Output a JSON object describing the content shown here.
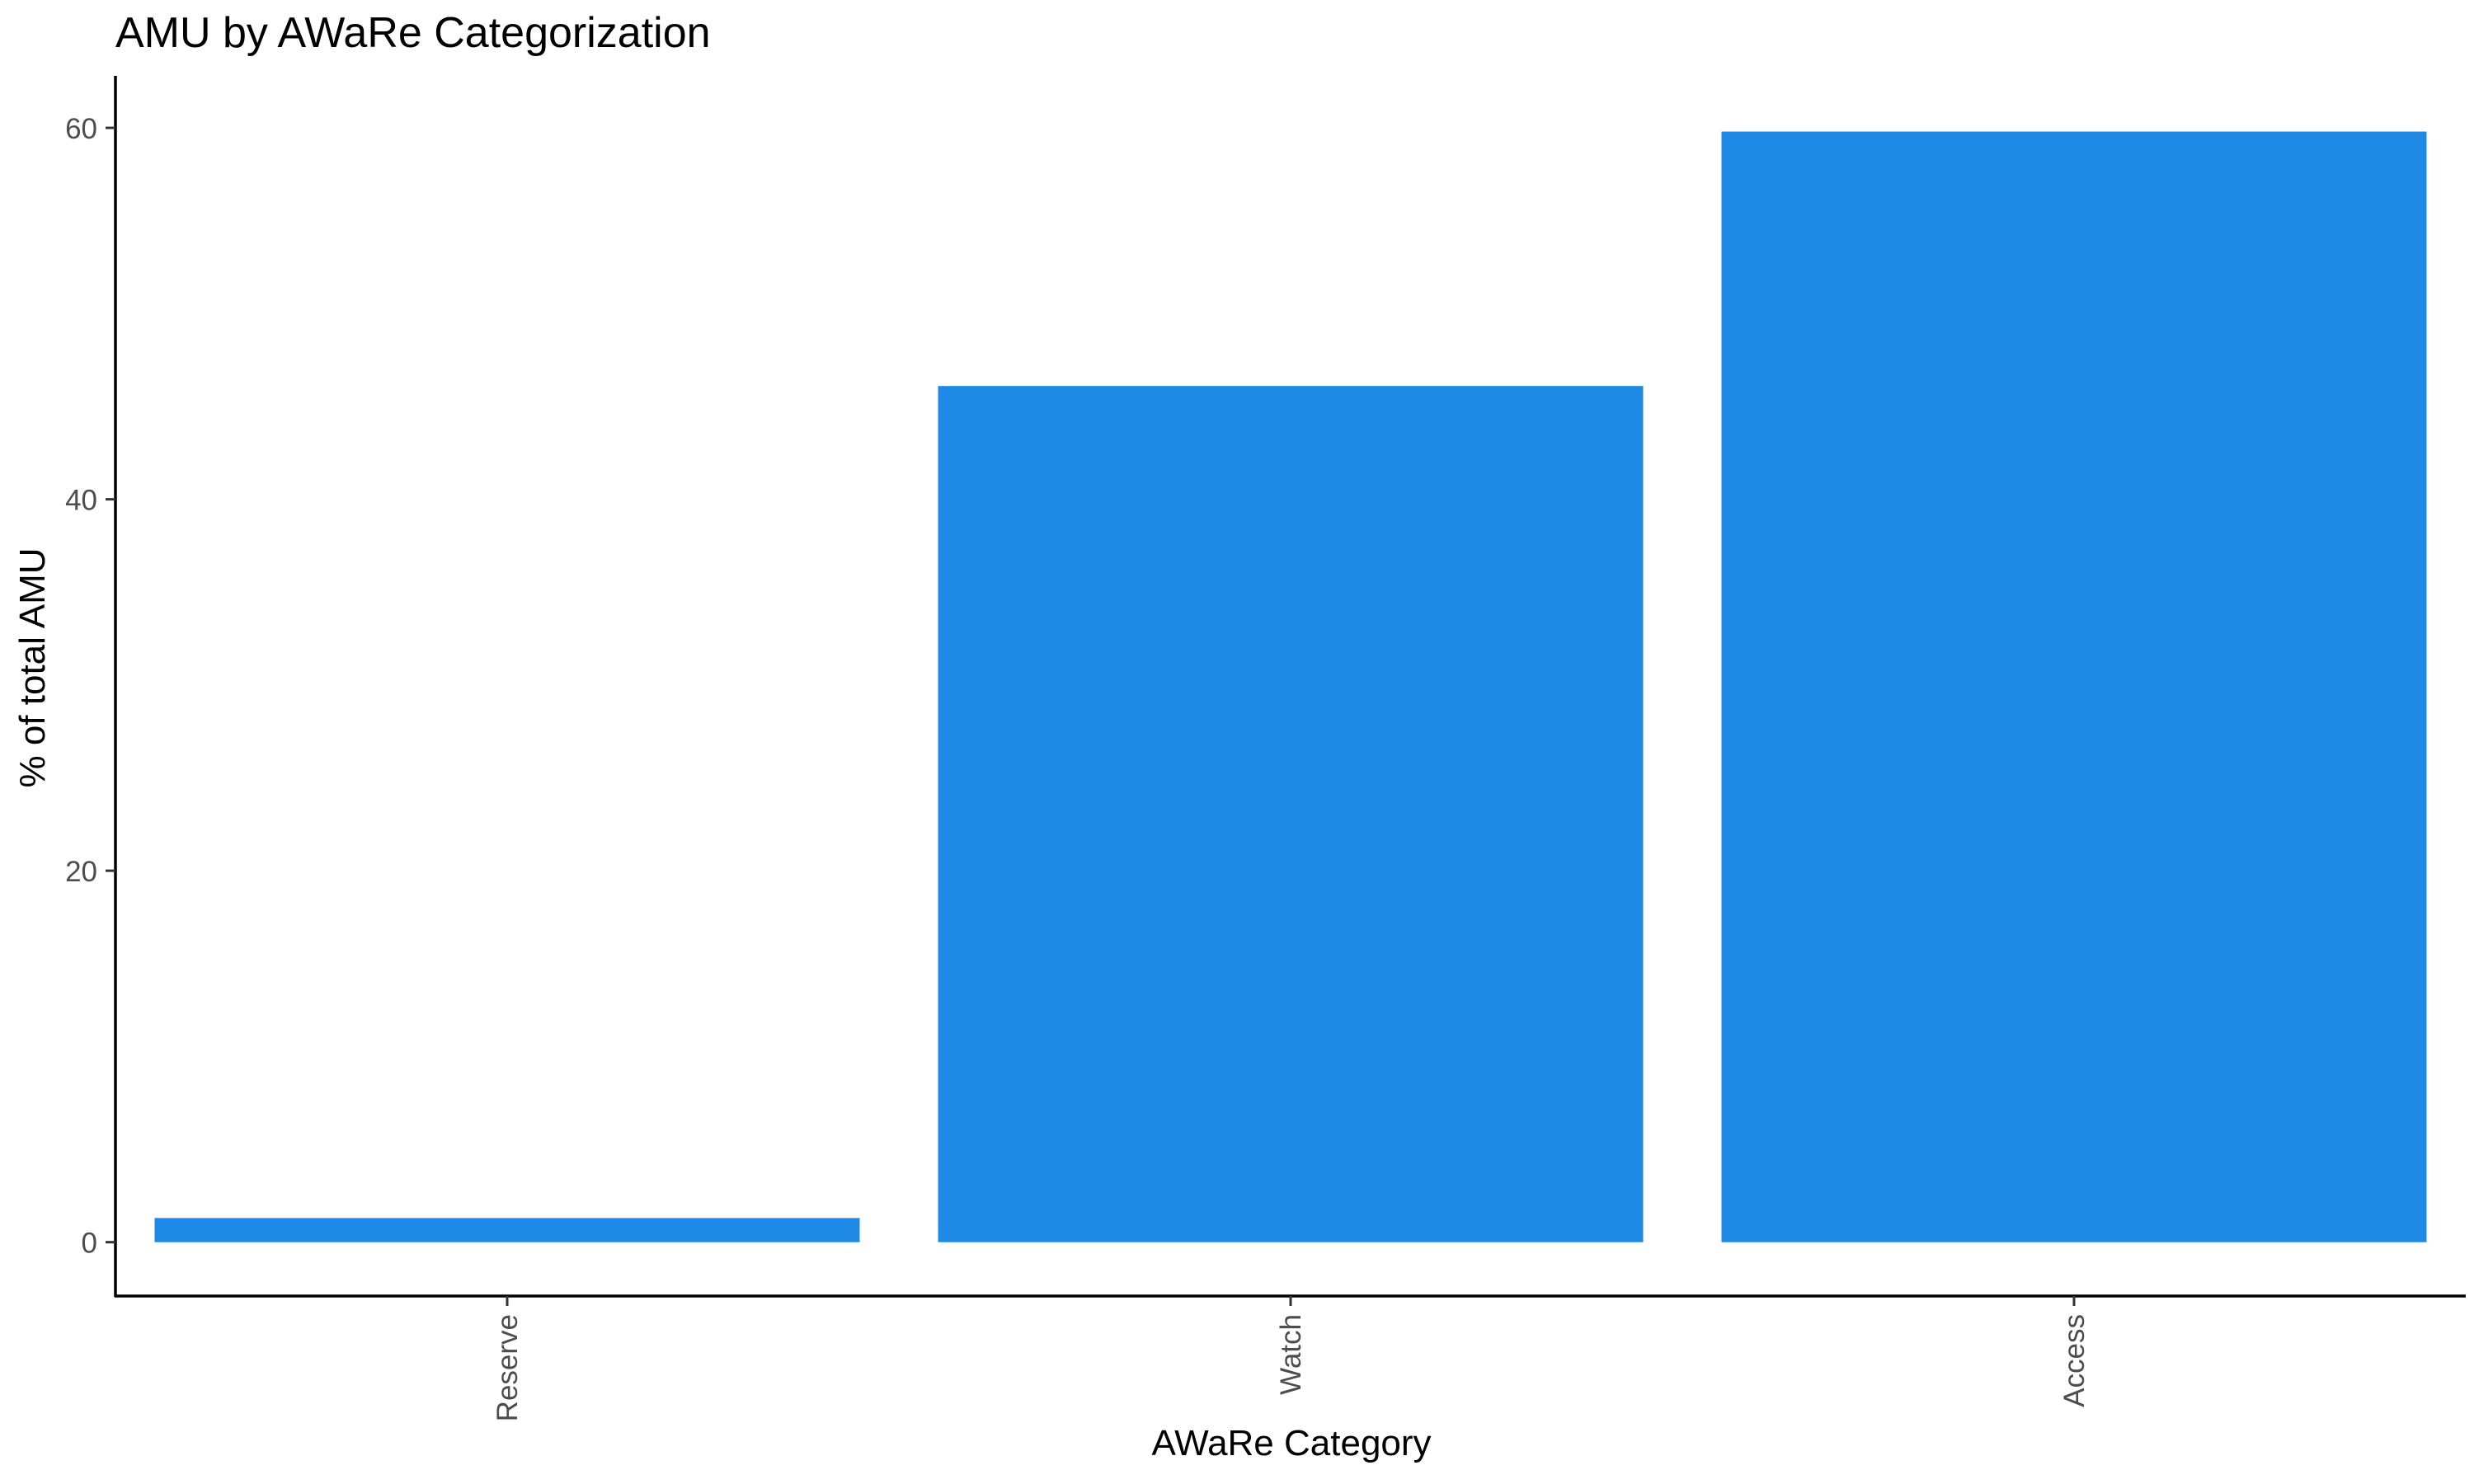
{
  "chart_data": {
    "type": "bar",
    "title": "AMU by AWaRe Categorization",
    "xlabel": "AWaRe Category",
    "ylabel": "% of total AMU",
    "categories": [
      "Reserve",
      "Watch",
      "Access"
    ],
    "values": [
      1.3,
      46.1,
      59.8
    ],
    "ylim": [
      -2.9,
      62.8
    ],
    "yticks": [
      0,
      20,
      40,
      60
    ],
    "ytick_labels": [
      "0",
      "20",
      "40",
      "60"
    ],
    "grid": false,
    "legend": "none",
    "bar_color": "#1E88E5",
    "x_tick_label_rotation": "vertical"
  }
}
